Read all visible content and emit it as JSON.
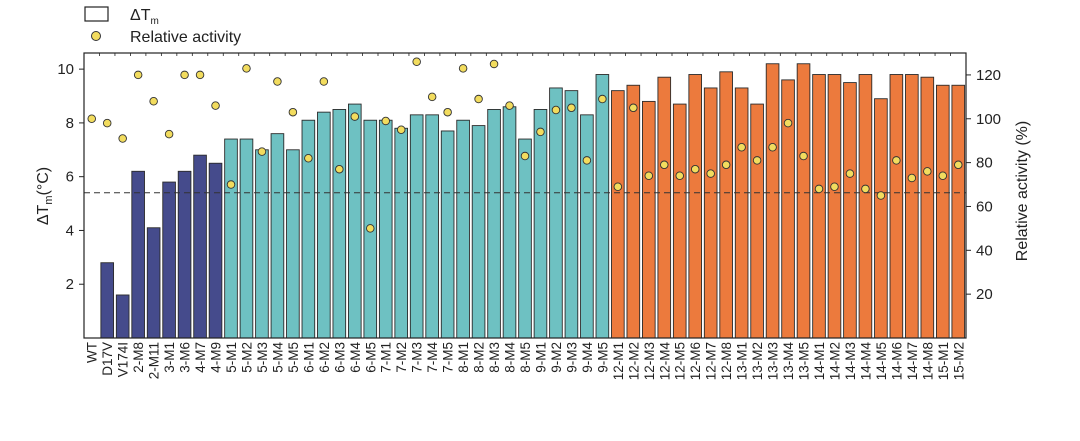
{
  "chart_data": {
    "type": "bar",
    "legend": {
      "placement": "top-left",
      "items": [
        {
          "label_main": "ΔT",
          "label_sub": "m",
          "kind": "bar-outline"
        },
        {
          "label": "Relative activity",
          "kind": "dot"
        }
      ]
    },
    "left_axis": {
      "title_main": "ΔT",
      "title_sub": "m",
      "title_tail": "(°C)",
      "range": [
        0,
        10.6
      ],
      "ticks": [
        2,
        4,
        6,
        8,
        10
      ]
    },
    "right_axis": {
      "title": "Relative activity (%)",
      "range": [
        0,
        130
      ],
      "ticks": [
        20,
        40,
        60,
        80,
        100,
        120
      ]
    },
    "reference_line": {
      "axis": "left",
      "value": 5.4,
      "style": "dashed"
    },
    "group_colors": {
      "dark": "#454B8C",
      "teal": "#6EC1C2",
      "orange": "#EC7A3D"
    },
    "dot_color": "#F2DC5E",
    "categories": [
      "WT",
      "D17V",
      "V174I",
      "2-M8",
      "2-M11",
      "3-M1",
      "3-M6",
      "4-M7",
      "4-M9",
      "5-M1",
      "5-M2",
      "5-M3",
      "5-M4",
      "5-M5",
      "6-M1",
      "6-M2",
      "6-M3",
      "6-M4",
      "6-M5",
      "7-M1",
      "7-M2",
      "7-M3",
      "7-M4",
      "7-M5",
      "8-M1",
      "8-M2",
      "8-M3",
      "8-M4",
      "8-M5",
      "9-M1",
      "9-M2",
      "9-M3",
      "9-M4",
      "9-M5",
      "12-M1",
      "12-M2",
      "12-M3",
      "12-M4",
      "12-M5",
      "12-M6",
      "12-M7",
      "12-M8",
      "13-M1",
      "13-M2",
      "13-M3",
      "13-M4",
      "13-M5",
      "14-M1",
      "14-M2",
      "14-M3",
      "14-M4",
      "14-M5",
      "14-M6",
      "14-M7",
      "14-M8",
      "15-M1",
      "15-M2"
    ],
    "groups": [
      "none",
      "dark",
      "dark",
      "dark",
      "dark",
      "dark",
      "dark",
      "dark",
      "dark",
      "teal",
      "teal",
      "teal",
      "teal",
      "teal",
      "teal",
      "teal",
      "teal",
      "teal",
      "teal",
      "teal",
      "teal",
      "teal",
      "teal",
      "teal",
      "teal",
      "teal",
      "teal",
      "teal",
      "teal",
      "teal",
      "teal",
      "teal",
      "teal",
      "teal",
      "orange",
      "orange",
      "orange",
      "orange",
      "orange",
      "orange",
      "orange",
      "orange",
      "orange",
      "orange",
      "orange",
      "orange",
      "orange",
      "orange",
      "orange",
      "orange",
      "orange",
      "orange",
      "orange",
      "orange",
      "orange",
      "orange",
      "orange"
    ],
    "series": [
      {
        "name": "ΔTm",
        "axis": "left",
        "kind": "bar",
        "values": [
          0,
          2.8,
          1.6,
          6.2,
          4.1,
          5.8,
          6.2,
          6.8,
          6.5,
          7.4,
          7.4,
          7.0,
          7.6,
          7.0,
          8.1,
          8.4,
          8.5,
          8.7,
          8.1,
          8.1,
          7.8,
          8.3,
          8.3,
          7.7,
          8.1,
          7.9,
          8.5,
          8.6,
          7.4,
          8.5,
          9.3,
          9.2,
          8.3,
          9.8,
          9.2,
          9.4,
          8.8,
          9.7,
          8.7,
          9.8,
          9.3,
          9.9,
          9.3,
          8.7,
          10.2,
          9.6,
          10.2,
          9.8,
          9.8,
          9.5,
          9.8,
          8.9,
          9.8,
          9.8,
          9.7,
          9.4,
          9.4
        ]
      },
      {
        "name": "Relative activity",
        "axis": "right",
        "kind": "dot",
        "values": [
          100,
          98,
          91,
          120,
          108,
          93,
          120,
          120,
          106,
          70,
          123,
          85,
          117,
          103,
          82,
          117,
          77,
          101,
          50,
          99,
          95,
          126,
          110,
          103,
          123,
          109,
          125,
          106,
          83,
          94,
          104,
          105,
          81,
          109,
          69,
          105,
          74,
          79,
          74,
          77,
          75,
          79,
          87,
          81,
          87,
          98,
          83,
          68,
          69,
          75,
          68,
          65,
          81,
          73,
          76,
          74,
          79
        ]
      }
    ]
  }
}
